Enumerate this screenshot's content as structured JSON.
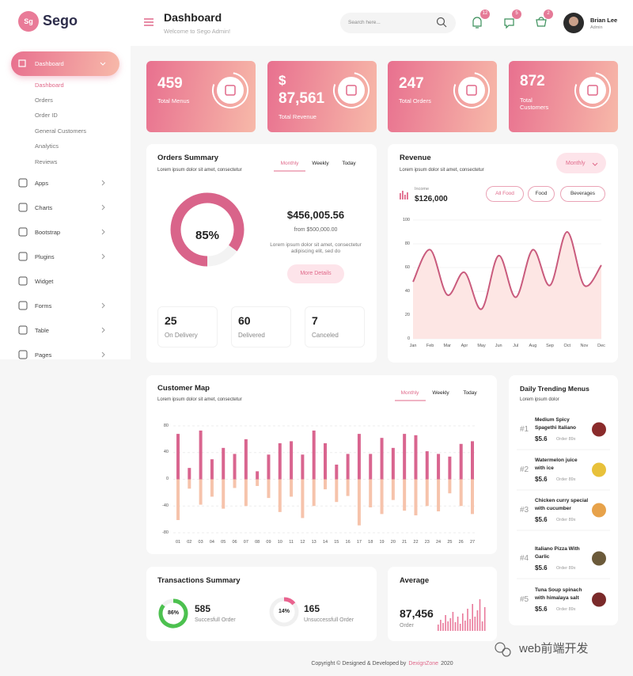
{
  "sidebar": {
    "logo_badge": "Sg",
    "logo": "Sego",
    "active": {
      "label": "Dashboard",
      "children": [
        "Dashboard",
        "Orders",
        "Order ID",
        "General Customers",
        "Analytics",
        "Reviews"
      ]
    },
    "menu": [
      "Apps",
      "Charts",
      "Bootstrap",
      "Plugins",
      "Widget",
      "Forms",
      "Table",
      "Pages"
    ]
  },
  "header": {
    "title": "Dashboard",
    "subtitle": "Welcome to Sego Admin!",
    "search_placeholder": "Search here...",
    "badges": [
      12,
      5,
      2
    ],
    "user_name": "Brian Lee",
    "user_role": "Admin"
  },
  "stats": [
    {
      "value": 459,
      "label": "Total Menus"
    },
    {
      "prefix": "$",
      "value": "87,561",
      "label": "Total Revenue"
    },
    {
      "value": 247,
      "label": "Total Orders"
    },
    {
      "value": 872,
      "label": "Total Customers"
    }
  ],
  "orders_summary": {
    "title": "Orders Summary",
    "subtitle": "Lorem ipsum dolor sit amet, consectetur",
    "tabs": [
      "Monthly",
      "Weekly",
      "Today"
    ],
    "gauge": {
      "value": 85,
      "label": "85%"
    },
    "amount": "$456,005.56",
    "from": "from $500,000.00",
    "text": "Lorem ipsum dolor sit amet, consectetur adipiscing elit, sed do",
    "button": "More Details",
    "counts": [
      {
        "value": 25,
        "label": "On Delivery"
      },
      {
        "value": 60,
        "label": "Delivered"
      },
      {
        "value": 7,
        "label": "Canceled"
      }
    ]
  },
  "revenue": {
    "title": "Revenue",
    "subtitle": "Lorem ipsum dolor sit amet, consectetur",
    "dropdown": "Monthly",
    "income_label": "Income",
    "income": "$126,000",
    "filters": [
      "All Food",
      "Food",
      "Beverages"
    ]
  },
  "customer_map": {
    "title": "Customer Map",
    "subtitle": "Lorem ipsum dolor sit amet, consectetur",
    "tabs": [
      "Monthly",
      "Weekly",
      "Today"
    ]
  },
  "trending": {
    "title": "Daily Trending Menus",
    "subtitle": "Lorem ipsum dolor",
    "items": [
      {
        "rank": "#1",
        "name": "Medium Spicy Spagethi Italiano",
        "price": "$5.6",
        "orders": "Order 89x"
      },
      {
        "rank": "#2",
        "name": "Watermelon juice with ice",
        "price": "$5.6",
        "orders": "Order 89x"
      },
      {
        "rank": "#3",
        "name": "Chicken curry special with cucumber",
        "price": "$5.6",
        "orders": "Order 89x"
      },
      {
        "rank": "#4",
        "name": "Italiano Pizza With Garlic",
        "price": "$5.6",
        "orders": "Order 89x"
      },
      {
        "rank": "#5",
        "name": "Tuna Soup spinach with himalaya salt",
        "price": "$5.6",
        "orders": "Order 89x"
      }
    ]
  },
  "transactions": {
    "title": "Transactions Summary",
    "items": [
      {
        "percent": 86,
        "label": "86%",
        "value": 585,
        "text": "Succesfull Order",
        "color": "#4cc14f"
      },
      {
        "percent": 14,
        "label": "14%",
        "value": 165,
        "text": "Unsuccessfull Order",
        "color": "#e9638f"
      }
    ]
  },
  "average": {
    "title": "Average",
    "value": "87,456",
    "label": "Order"
  },
  "footer": {
    "text": "Copyright © Designed & Developed by",
    "brand": "DexignZone",
    "year": 2020
  },
  "watermark": "web前端开发",
  "chart_data": [
    {
      "type": "line",
      "categories": [
        "Jan",
        "Feb",
        "Mar",
        "Apr",
        "May",
        "Jun",
        "Jul",
        "Aug",
        "Sep",
        "Oct",
        "Nov",
        "Dec"
      ],
      "values": [
        48,
        75,
        37,
        56,
        25,
        70,
        35,
        75,
        45,
        90,
        45,
        62
      ],
      "color": "#c95b7d",
      "fill": "#fde6e4",
      "ylim": [
        0,
        100
      ],
      "yticks": [
        0,
        20,
        40,
        60,
        80,
        100
      ],
      "grid": true
    },
    {
      "type": "bar",
      "categories": [
        "01",
        "02",
        "03",
        "04",
        "05",
        "06",
        "07",
        "08",
        "09",
        "10",
        "11",
        "12",
        "13",
        "14",
        "15",
        "16",
        "17",
        "18",
        "19",
        "20",
        "21",
        "22",
        "23",
        "24",
        "25",
        "26",
        "27"
      ],
      "series": [
        {
          "color": "#d9658f",
          "values": [
            68,
            17,
            73,
            30,
            47,
            38,
            60,
            12,
            37,
            54,
            57,
            37,
            73,
            54,
            22,
            38,
            68,
            38,
            62,
            47,
            68,
            66,
            42,
            38,
            34,
            53,
            57
          ]
        },
        {
          "color": "#f6c3ab",
          "values": [
            -61,
            -14,
            -38,
            -26,
            -44,
            -13,
            -40,
            -10,
            -28,
            -49,
            -26,
            -58,
            -40,
            -15,
            -34,
            -25,
            -69,
            -42,
            -52,
            -31,
            -47,
            -54,
            -40,
            -48,
            -21,
            -40,
            -52
          ]
        }
      ],
      "ylim": [
        -80,
        80
      ],
      "yticks": [
        -80,
        -40,
        0,
        40,
        80
      ],
      "grid": true
    },
    {
      "type": "bar",
      "values": [
        8,
        14,
        10,
        20,
        12,
        16,
        24,
        11,
        18,
        9,
        22,
        13,
        28,
        15,
        34,
        18,
        26,
        40,
        12,
        30
      ],
      "color": "#e9799b"
    }
  ]
}
